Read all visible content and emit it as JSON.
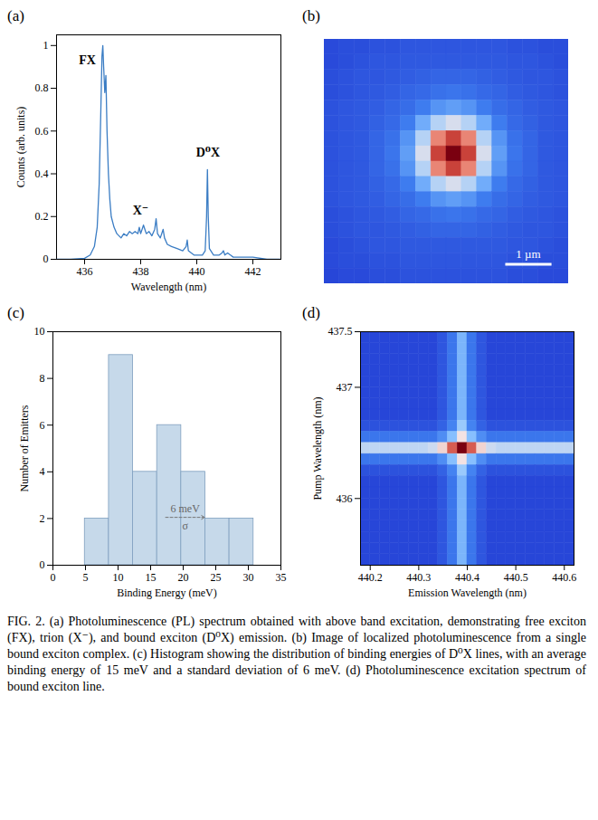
{
  "chart_data": [
    {
      "panel": "(a)",
      "type": "line",
      "x_label": "Wavelength (nm)",
      "y_label": "Counts (arb. units)",
      "x": [
        435.0,
        435.5,
        436.0,
        436.2,
        436.35,
        436.45,
        436.52,
        436.58,
        436.62,
        436.65,
        436.68,
        436.72,
        436.76,
        436.8,
        436.85,
        436.9,
        436.95,
        437.05,
        437.15,
        437.3,
        437.4,
        437.5,
        437.6,
        437.7,
        437.8,
        437.9,
        437.95,
        438.0,
        438.1,
        438.2,
        438.3,
        438.4,
        438.5,
        438.55,
        438.6,
        438.7,
        438.8,
        438.85,
        438.95,
        439.1,
        439.3,
        439.5,
        439.62,
        439.66,
        439.7,
        439.9,
        440.2,
        440.3,
        440.35,
        440.38,
        440.41,
        440.45,
        440.6,
        440.8,
        440.9,
        440.95,
        441.0,
        441.1,
        441.3,
        441.6,
        442.0,
        442.5,
        443.0
      ],
      "values": [
        0,
        0,
        0.005,
        0.02,
        0.06,
        0.15,
        0.35,
        0.7,
        0.95,
        1.0,
        0.9,
        0.78,
        0.86,
        0.6,
        0.4,
        0.28,
        0.2,
        0.15,
        0.12,
        0.1,
        0.12,
        0.11,
        0.13,
        0.12,
        0.13,
        0.12,
        0.15,
        0.12,
        0.16,
        0.12,
        0.13,
        0.11,
        0.14,
        0.19,
        0.12,
        0.1,
        0.14,
        0.1,
        0.07,
        0.06,
        0.05,
        0.04,
        0.06,
        0.09,
        0.04,
        0.02,
        0.02,
        0.04,
        0.2,
        0.42,
        0.2,
        0.05,
        0.02,
        0.02,
        0.03,
        0.04,
        0.02,
        0.03,
        0.01,
        0.01,
        0.01,
        0,
        0
      ],
      "color": "#3b7dc4",
      "xlim": [
        435,
        443
      ],
      "ylim": [
        0,
        1.05
      ],
      "xticks": [
        436,
        438,
        440,
        442
      ],
      "yticks": [
        0,
        0.2,
        0.4,
        0.6,
        0.8,
        1
      ],
      "annotations": [
        {
          "text": "FX",
          "x": 436.1,
          "y": 0.93
        },
        {
          "text": "X⁻",
          "x": 438.0,
          "y": 0.23
        },
        {
          "text": "D⁰X",
          "x": 440.4,
          "y": 0.5
        }
      ]
    },
    {
      "panel": "(b)",
      "type": "heatmap",
      "tick_labels": false,
      "xlim": [
        0,
        5.28
      ],
      "ylim": [
        0,
        5.28
      ],
      "scale_bar": {
        "length": 1,
        "label": "1 µm"
      },
      "cells": [
        [
          13,
          14,
          14,
          15,
          15,
          16,
          16,
          16,
          16,
          16,
          16,
          16,
          15,
          15,
          14,
          14
        ],
        [
          13,
          14,
          15,
          16,
          16,
          17,
          17,
          17,
          17,
          17,
          17,
          17,
          16,
          16,
          15,
          14
        ],
        [
          14,
          15,
          16,
          16,
          17,
          18,
          19,
          20,
          20,
          20,
          19,
          18,
          17,
          16,
          16,
          15
        ],
        [
          14,
          15,
          16,
          17,
          18,
          20,
          21,
          23,
          24,
          23,
          21,
          20,
          18,
          17,
          16,
          15
        ],
        [
          15,
          16,
          17,
          18,
          20,
          22,
          26,
          31,
          33,
          31,
          26,
          22,
          20,
          18,
          17,
          16
        ],
        [
          15,
          16,
          17,
          19,
          21,
          26,
          36,
          47,
          52,
          47,
          36,
          26,
          21,
          19,
          17,
          16
        ],
        [
          15,
          16,
          17,
          20,
          23,
          31,
          47,
          70,
          82,
          70,
          47,
          31,
          23,
          20,
          17,
          16
        ],
        [
          15,
          16,
          17,
          20,
          24,
          33,
          52,
          82,
          100,
          82,
          52,
          33,
          24,
          20,
          17,
          16
        ],
        [
          15,
          16,
          17,
          20,
          23,
          31,
          47,
          70,
          82,
          70,
          47,
          31,
          23,
          20,
          17,
          16
        ],
        [
          15,
          16,
          17,
          19,
          21,
          26,
          36,
          47,
          52,
          47,
          36,
          26,
          21,
          19,
          17,
          16
        ],
        [
          15,
          16,
          17,
          18,
          20,
          22,
          26,
          31,
          33,
          31,
          26,
          22,
          20,
          18,
          17,
          16
        ],
        [
          14,
          15,
          16,
          17,
          18,
          20,
          21,
          23,
          24,
          23,
          21,
          20,
          18,
          17,
          16,
          15
        ],
        [
          14,
          15,
          16,
          16,
          17,
          18,
          19,
          20,
          20,
          20,
          19,
          18,
          17,
          16,
          16,
          15
        ],
        [
          13,
          14,
          15,
          16,
          16,
          17,
          17,
          17,
          17,
          17,
          17,
          17,
          16,
          16,
          15,
          14
        ],
        [
          13,
          14,
          14,
          15,
          15,
          16,
          16,
          16,
          16,
          16,
          16,
          16,
          15,
          15,
          14,
          14
        ],
        [
          12,
          13,
          13,
          14,
          14,
          15,
          15,
          15,
          15,
          15,
          15,
          15,
          14,
          14,
          13,
          13
        ]
      ]
    },
    {
      "panel": "(c)",
      "type": "histogram",
      "x_label": "Binding Energy (meV)",
      "y_label": "Number of Emitters",
      "bins": [
        4.9,
        8.6,
        12.3,
        16.0,
        19.7,
        23.4,
        27.1,
        30.8
      ],
      "values": [
        2,
        9,
        4,
        6,
        4,
        2,
        2
      ],
      "color": "#c6d9ea",
      "xlim": [
        0,
        35
      ],
      "ylim": [
        0,
        10
      ],
      "xticks": [
        0,
        5,
        10,
        15,
        20,
        25,
        30,
        35
      ],
      "yticks": [
        0,
        2,
        4,
        6,
        8,
        10
      ],
      "annotation": {
        "text": "6 meV",
        "symbol": "σ",
        "x": 17.3,
        "y": 2.05,
        "length": 6
      }
    },
    {
      "panel": "(d)",
      "type": "heatmap",
      "x_label": "Emission Wavelength (nm)",
      "y_label": "Pump Wavelength (nm)",
      "xlim": [
        440.18,
        440.62
      ],
      "ylim": [
        435.4,
        437.5
      ],
      "xticks": [
        440.2,
        440.3,
        440.4,
        440.5,
        440.6
      ],
      "yticks": [
        436,
        437,
        437.5
      ],
      "cells": [
        [
          15,
          15,
          15,
          15,
          15,
          15,
          15,
          15,
          19,
          27,
          40,
          27,
          19,
          15,
          15,
          15,
          15,
          15,
          15,
          15,
          15,
          15
        ],
        [
          15,
          15,
          15,
          15,
          15,
          15,
          15,
          15,
          19,
          27,
          40,
          27,
          19,
          15,
          15,
          15,
          15,
          15,
          15,
          15,
          15,
          15
        ],
        [
          15,
          15,
          15,
          15,
          15,
          15,
          15,
          15,
          19,
          27,
          40,
          27,
          19,
          15,
          15,
          15,
          15,
          15,
          15,
          15,
          15,
          15
        ],
        [
          15,
          15,
          15,
          15,
          15,
          15,
          15,
          15,
          19,
          27,
          40,
          27,
          19,
          15,
          15,
          15,
          15,
          15,
          15,
          15,
          15,
          15
        ],
        [
          15,
          15,
          15,
          15,
          15,
          15,
          15,
          15,
          19,
          27,
          40,
          27,
          19,
          15,
          15,
          15,
          15,
          15,
          15,
          15,
          15,
          15
        ],
        [
          15,
          15,
          15,
          15,
          15,
          15,
          15,
          15,
          19,
          27,
          40,
          27,
          19,
          15,
          15,
          15,
          15,
          15,
          15,
          15,
          15,
          15
        ],
        [
          15,
          15,
          15,
          15,
          15,
          15,
          15,
          15,
          19,
          27,
          40,
          27,
          19,
          15,
          15,
          15,
          15,
          15,
          15,
          15,
          15,
          15
        ],
        [
          15,
          15,
          15,
          15,
          15,
          15,
          15,
          15,
          19,
          27,
          40,
          27,
          19,
          15,
          15,
          15,
          15,
          15,
          15,
          15,
          15,
          15
        ],
        [
          18,
          18,
          18,
          18,
          18,
          18,
          18,
          18,
          22,
          30,
          45,
          30,
          22,
          18,
          18,
          18,
          18,
          18,
          18,
          18,
          18,
          18
        ],
        [
          27,
          27,
          27,
          27,
          27,
          27,
          27,
          27,
          32,
          42,
          58,
          42,
          32,
          27,
          27,
          27,
          27,
          27,
          27,
          27,
          27,
          27
        ],
        [
          50,
          50,
          50,
          50,
          50,
          50,
          50,
          52,
          60,
          78,
          100,
          78,
          60,
          52,
          50,
          50,
          50,
          50,
          50,
          50,
          50,
          50
        ],
        [
          27,
          27,
          27,
          27,
          27,
          27,
          27,
          27,
          32,
          42,
          58,
          42,
          32,
          27,
          27,
          27,
          27,
          27,
          27,
          27,
          27,
          27
        ],
        [
          18,
          18,
          18,
          18,
          18,
          18,
          18,
          18,
          22,
          30,
          45,
          30,
          22,
          18,
          18,
          18,
          18,
          18,
          18,
          18,
          18,
          18
        ],
        [
          15,
          15,
          15,
          15,
          15,
          15,
          15,
          15,
          19,
          27,
          40,
          27,
          19,
          15,
          15,
          15,
          15,
          15,
          15,
          15,
          15,
          15
        ],
        [
          15,
          15,
          15,
          15,
          15,
          15,
          15,
          15,
          19,
          27,
          40,
          27,
          19,
          15,
          15,
          15,
          15,
          15,
          15,
          15,
          15,
          15
        ],
        [
          15,
          15,
          15,
          15,
          15,
          15,
          15,
          15,
          19,
          27,
          40,
          27,
          19,
          15,
          15,
          15,
          15,
          15,
          15,
          15,
          15,
          15
        ],
        [
          15,
          15,
          15,
          15,
          15,
          15,
          15,
          15,
          19,
          27,
          40,
          27,
          19,
          15,
          15,
          15,
          15,
          15,
          15,
          15,
          15,
          15
        ],
        [
          15,
          15,
          15,
          15,
          15,
          15,
          15,
          15,
          19,
          27,
          40,
          27,
          19,
          15,
          15,
          15,
          15,
          15,
          15,
          15,
          15,
          15
        ],
        [
          15,
          15,
          15,
          15,
          15,
          15,
          15,
          15,
          19,
          27,
          40,
          27,
          19,
          15,
          15,
          15,
          15,
          15,
          15,
          15,
          15,
          15
        ],
        [
          15,
          15,
          15,
          15,
          15,
          15,
          15,
          15,
          19,
          27,
          40,
          27,
          19,
          15,
          15,
          15,
          15,
          15,
          15,
          15,
          15,
          15
        ],
        [
          15,
          15,
          15,
          15,
          15,
          15,
          15,
          15,
          19,
          27,
          40,
          27,
          19,
          15,
          15,
          15,
          15,
          15,
          15,
          15,
          15,
          15
        ]
      ]
    }
  ],
  "caption": "FIG. 2. (a) Photoluminescence (PL) spectrum obtained with above band excitation, demonstrating free exciton (FX), trion (X⁻), and bound exciton (D⁰X) emission. (b) Image of localized photoluminescence from a single bound exciton complex. (c) Histogram showing the distribution of binding energies of D⁰X lines, with an average binding energy of 15 meV and a standard deviation of 6 meV. (d) Photoluminescence excitation spectrum of bound exciton line."
}
